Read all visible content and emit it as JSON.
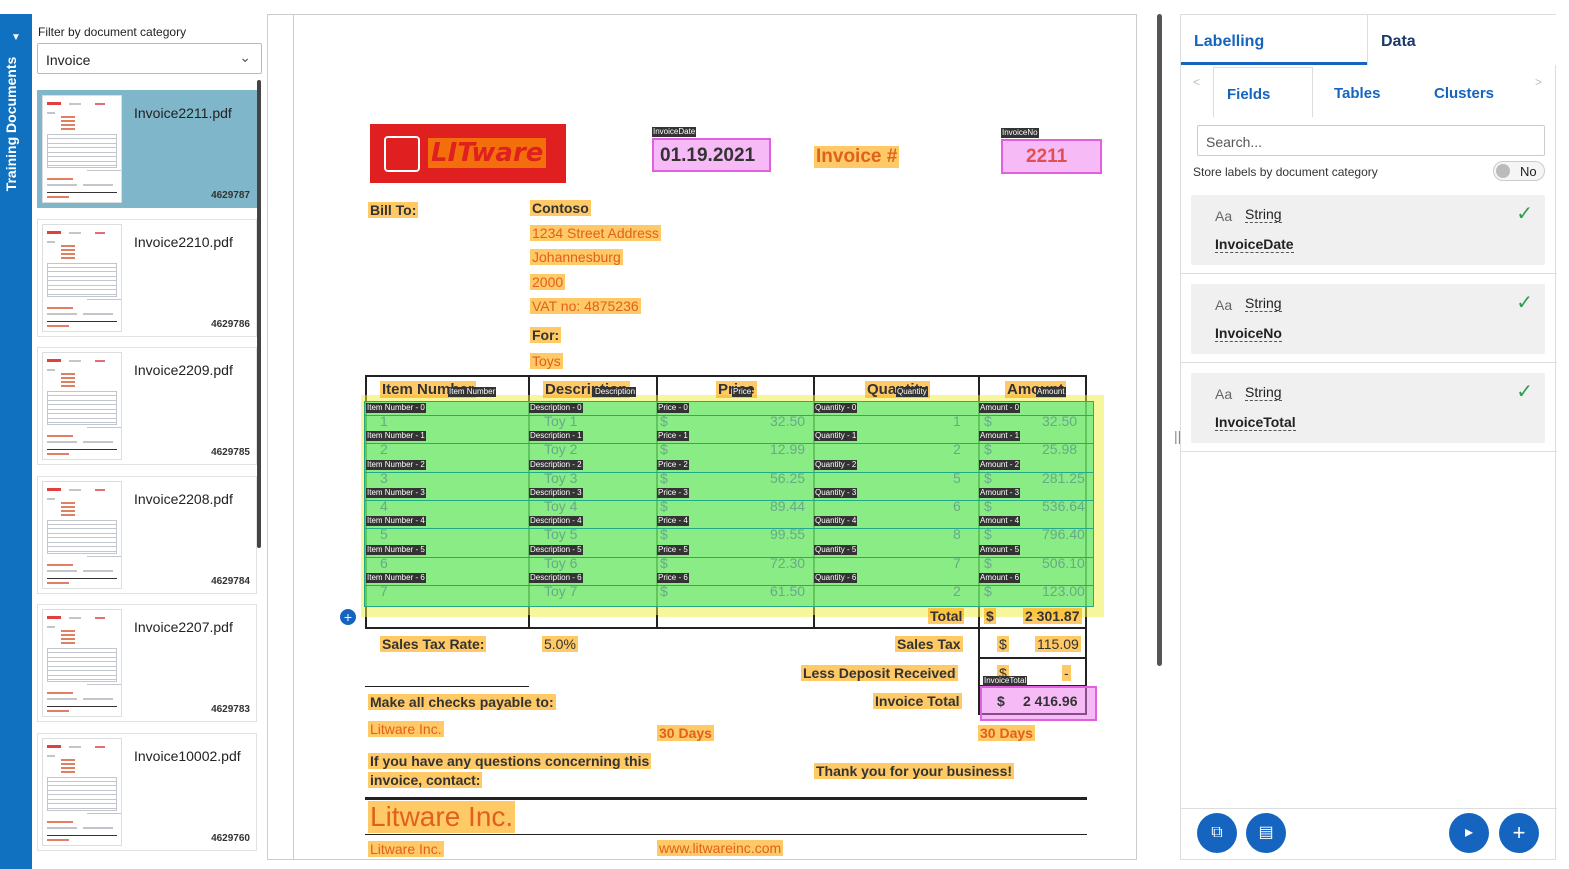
{
  "sidebar": {
    "rail_title": "Training Documents",
    "filter_label": "Filter by document category",
    "filter_value": "Invoice",
    "documents": [
      {
        "name": "Invoice2211.pdf",
        "id": "4629787",
        "selected": true
      },
      {
        "name": "Invoice2210.pdf",
        "id": "4629786",
        "selected": false
      },
      {
        "name": "Invoice2209.pdf",
        "id": "4629785",
        "selected": false
      },
      {
        "name": "Invoice2208.pdf",
        "id": "4629784",
        "selected": false
      },
      {
        "name": "Invoice2207.pdf",
        "id": "4629783",
        "selected": false
      },
      {
        "name": "Invoice10002.pdf",
        "id": "4629760",
        "selected": false
      }
    ]
  },
  "document": {
    "logo": "LITware",
    "date_tag": "InvoiceDate",
    "date": "01.19.2021",
    "invoice_label": "Invoice #",
    "invoice_no_tag": "InvoiceNo",
    "invoice_no": "2211",
    "bill_to": "Bill To:",
    "address": [
      "Contoso",
      "1234 Street Address",
      "Johannesburg",
      "2000",
      "VAT no: 4875236"
    ],
    "for_label": "For:",
    "for_value": "Toys",
    "headers": [
      "Item Number",
      "Description",
      "Price",
      "Quantity",
      "Amount"
    ],
    "header_tags": [
      "Item Number",
      "Description",
      "Price",
      "Quantity",
      "Amount"
    ],
    "rows": [
      {
        "item": "1",
        "desc": "Toy 1",
        "price": "32.50",
        "qty": "1",
        "amount": "32.50"
      },
      {
        "item": "2",
        "desc": "Toy 2",
        "price": "12.99",
        "qty": "2",
        "amount": "25.98"
      },
      {
        "item": "3",
        "desc": "Toy 3",
        "price": "56.25",
        "qty": "5",
        "amount": "281.25"
      },
      {
        "item": "4",
        "desc": "Toy 4",
        "price": "89.44",
        "qty": "6",
        "amount": "536.64"
      },
      {
        "item": "5",
        "desc": "Toy 5",
        "price": "99.55",
        "qty": "8",
        "amount": "796.40"
      },
      {
        "item": "6",
        "desc": "Toy 6",
        "price": "72.30",
        "qty": "7",
        "amount": "506.10"
      },
      {
        "item": "7",
        "desc": "Toy 7",
        "price": "61.50",
        "qty": "2",
        "amount": "123.00"
      }
    ],
    "row_tags": [
      "Item Number",
      "Description",
      "Price",
      "Quantity",
      "Amount"
    ],
    "currency": "$",
    "total_label": "Total",
    "total_value": "2 301.87",
    "sales_tax_rate_label": "Sales Tax Rate:",
    "sales_tax_rate": "5.0%",
    "sales_tax_label": "Sales Tax",
    "sales_tax_value": "115.09",
    "less_deposit_label": "Less Deposit Received",
    "less_deposit_value": "-",
    "invoice_total_tag": "InvoiceTotal",
    "invoice_total_label": "Invoice Total",
    "invoice_total_value": "2 416.96",
    "checks_payable": "Make all checks payable to:",
    "payee": "Litware Inc.",
    "days_1": "30  Days",
    "days_2": "30  Days",
    "questions": "If you have any questions concerning this",
    "questions_2": "invoice, contact:",
    "thanks": "Thank you for your business!",
    "footer_brand": "Litware Inc.",
    "footer_company": "Litware Inc.",
    "footer_url": "www.litwareinc.com"
  },
  "panel": {
    "tab_labelling": "Labelling",
    "tab_data": "Data",
    "subtab_fields": "Fields",
    "subtab_tables": "Tables",
    "subtab_clusters": "Clusters",
    "search_placeholder": "Search...",
    "store_label": "Store labels by document category",
    "toggle_value": "No",
    "fields": [
      {
        "aa": "Aa",
        "type": "String",
        "name": "InvoiceDate"
      },
      {
        "aa": "Aa",
        "type": "String",
        "name": "InvoiceNo"
      },
      {
        "aa": "Aa",
        "type": "String",
        "name": "InvoiceTotal"
      }
    ]
  },
  "colors": {
    "accent": "#1565c0",
    "rail": "#1071c0",
    "selected_doc": "#7fb6c9",
    "field_highlight": "#ffa500",
    "label_pink": "#ee78ee",
    "table_green": "#66dd88",
    "table_yellow": "#eeee66",
    "check": "#2e9e4f"
  }
}
